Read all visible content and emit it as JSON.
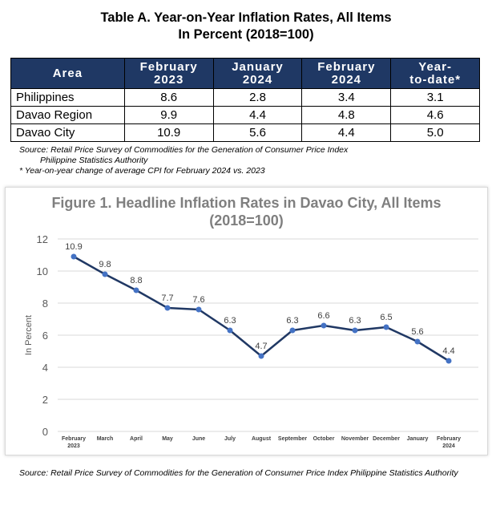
{
  "table": {
    "title_line1": "Table A. Year-on-Year Inflation Rates, All Items",
    "title_line2": "In Percent (2018=100)",
    "headers": [
      {
        "l1": "Area",
        "l2": ""
      },
      {
        "l1": "February",
        "l2": "2023"
      },
      {
        "l1": "January",
        "l2": "2024"
      },
      {
        "l1": "February",
        "l2": "2024"
      },
      {
        "l1": "Year-",
        "l2": "to-date*"
      }
    ],
    "rows": [
      [
        "Philippines",
        "8.6",
        "2.8",
        "3.4",
        "3.1"
      ],
      [
        "Davao Region",
        "9.9",
        "4.4",
        "4.8",
        "4.6"
      ],
      [
        "Davao City",
        "10.9",
        "5.6",
        "4.4",
        "5.0"
      ]
    ],
    "source_line1": "Source: Retail Price Survey of Commodities for the Generation of Consumer Price Index",
    "source_line2": "Philippine Statistics Authority",
    "note": "* Year-on-year change of average CPI for February 2024 vs. 2023"
  },
  "figure": {
    "title_line1": "Figure 1. Headline Inflation Rates in Davao City, All Items",
    "title_line2": "(2018=100)"
  },
  "chart_data": {
    "type": "line",
    "title": "Figure 1. Headline Inflation Rates in Davao City, All Items (2018=100)",
    "xlabel": "",
    "ylabel": "In Percent",
    "categories": [
      [
        "February",
        "2023"
      ],
      [
        "March"
      ],
      [
        "April"
      ],
      [
        "May"
      ],
      [
        "June"
      ],
      [
        "July"
      ],
      [
        "August"
      ],
      [
        "September"
      ],
      [
        "October"
      ],
      [
        "November"
      ],
      [
        "December"
      ],
      [
        "January"
      ],
      [
        "February",
        "2024"
      ]
    ],
    "series": [
      {
        "values": [
          10.9,
          9.8,
          8.8,
          7.7,
          7.6,
          6.3,
          4.7,
          6.3,
          6.6,
          6.3,
          6.5,
          5.6,
          4.4
        ],
        "labels": [
          "10.9",
          "9.8",
          "8.8",
          "7.7",
          "7.6",
          "6.3",
          "4.7",
          "6.3",
          "6.6",
          "6.3",
          "6.5",
          "5.6",
          "4.4"
        ]
      }
    ],
    "ylim": [
      0,
      12
    ],
    "yticks": [
      0,
      2,
      4,
      6,
      8,
      10,
      12
    ],
    "grid": true,
    "legend": "none",
    "line_color": "#203864",
    "marker_color": "#4472c4"
  },
  "footer": {
    "source": "Source: Retail Price Survey of Commodities for the Generation of Consumer Price Index Philippine Statistics Authority"
  }
}
